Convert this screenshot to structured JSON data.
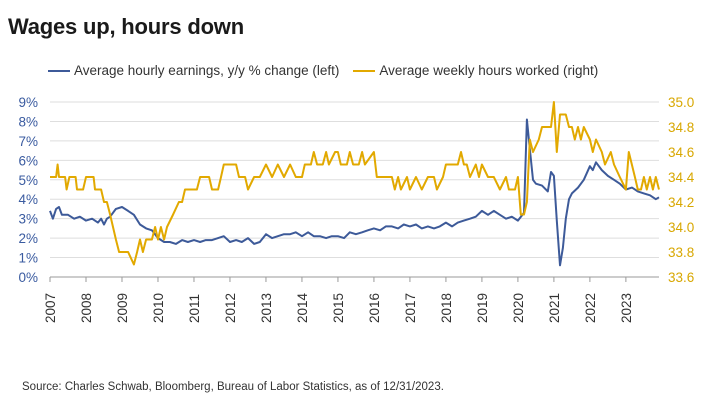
{
  "title": "Wages up, hours down",
  "source": "Source: Charles Schwab, Bloomberg, Bureau of Labor Statistics, as of 12/31/2023.",
  "colors": {
    "earnings": "#3d5a99",
    "hours": "#e2a900"
  },
  "chart_data": {
    "type": "line",
    "x_unit": "year",
    "x_range": [
      2007,
      2023.92
    ],
    "x_ticks": [
      "2007",
      "2008",
      "2009",
      "2010",
      "2011",
      "2012",
      "2013",
      "2014",
      "2015",
      "2016",
      "2017",
      "2018",
      "2019",
      "2020",
      "2021",
      "2022",
      "2023"
    ],
    "y_left": {
      "ticks": [
        "0%",
        "1%",
        "2%",
        "3%",
        "4%",
        "5%",
        "6%",
        "7%",
        "8%",
        "9%"
      ],
      "range": [
        0,
        9
      ]
    },
    "y_right": {
      "ticks": [
        "33.6",
        "33.8",
        "34.0",
        "34.2",
        "34.4",
        "34.6",
        "34.8",
        "35.0"
      ],
      "range": [
        33.6,
        35.0
      ]
    },
    "grid": "horizontal",
    "legend_position": "top",
    "series": [
      {
        "name": "Average hourly earnings, y/y % change (left)",
        "axis": "left",
        "points": [
          [
            2007.0,
            3.4
          ],
          [
            2007.08,
            3.0
          ],
          [
            2007.17,
            3.5
          ],
          [
            2007.25,
            3.6
          ],
          [
            2007.33,
            3.2
          ],
          [
            2007.5,
            3.2
          ],
          [
            2007.67,
            3.0
          ],
          [
            2007.83,
            3.1
          ],
          [
            2008.0,
            2.9
          ],
          [
            2008.17,
            3.0
          ],
          [
            2008.33,
            2.8
          ],
          [
            2008.42,
            3.0
          ],
          [
            2008.5,
            2.7
          ],
          [
            2008.58,
            3.0
          ],
          [
            2008.67,
            3.1
          ],
          [
            2008.83,
            3.5
          ],
          [
            2009.0,
            3.6
          ],
          [
            2009.17,
            3.4
          ],
          [
            2009.33,
            3.2
          ],
          [
            2009.5,
            2.7
          ],
          [
            2009.67,
            2.5
          ],
          [
            2009.83,
            2.4
          ],
          [
            2010.0,
            2.0
          ],
          [
            2010.17,
            1.8
          ],
          [
            2010.33,
            1.8
          ],
          [
            2010.5,
            1.7
          ],
          [
            2010.67,
            1.9
          ],
          [
            2010.83,
            1.8
          ],
          [
            2011.0,
            1.9
          ],
          [
            2011.17,
            1.8
          ],
          [
            2011.33,
            1.9
          ],
          [
            2011.5,
            1.9
          ],
          [
            2011.67,
            2.0
          ],
          [
            2011.83,
            2.1
          ],
          [
            2012.0,
            1.8
          ],
          [
            2012.17,
            1.9
          ],
          [
            2012.33,
            1.8
          ],
          [
            2012.5,
            2.0
          ],
          [
            2012.67,
            1.7
          ],
          [
            2012.83,
            1.8
          ],
          [
            2013.0,
            2.2
          ],
          [
            2013.17,
            2.0
          ],
          [
            2013.33,
            2.1
          ],
          [
            2013.5,
            2.2
          ],
          [
            2013.67,
            2.2
          ],
          [
            2013.83,
            2.3
          ],
          [
            2014.0,
            2.1
          ],
          [
            2014.17,
            2.3
          ],
          [
            2014.33,
            2.1
          ],
          [
            2014.5,
            2.1
          ],
          [
            2014.67,
            2.0
          ],
          [
            2014.83,
            2.1
          ],
          [
            2015.0,
            2.1
          ],
          [
            2015.17,
            2.0
          ],
          [
            2015.33,
            2.3
          ],
          [
            2015.5,
            2.2
          ],
          [
            2015.67,
            2.3
          ],
          [
            2015.83,
            2.4
          ],
          [
            2016.0,
            2.5
          ],
          [
            2016.17,
            2.4
          ],
          [
            2016.33,
            2.6
          ],
          [
            2016.5,
            2.6
          ],
          [
            2016.67,
            2.5
          ],
          [
            2016.83,
            2.7
          ],
          [
            2017.0,
            2.6
          ],
          [
            2017.17,
            2.7
          ],
          [
            2017.33,
            2.5
          ],
          [
            2017.5,
            2.6
          ],
          [
            2017.67,
            2.5
          ],
          [
            2017.83,
            2.6
          ],
          [
            2018.0,
            2.8
          ],
          [
            2018.17,
            2.6
          ],
          [
            2018.33,
            2.8
          ],
          [
            2018.5,
            2.9
          ],
          [
            2018.67,
            3.0
          ],
          [
            2018.83,
            3.1
          ],
          [
            2019.0,
            3.4
          ],
          [
            2019.17,
            3.2
          ],
          [
            2019.33,
            3.4
          ],
          [
            2019.5,
            3.2
          ],
          [
            2019.67,
            3.0
          ],
          [
            2019.83,
            3.1
          ],
          [
            2020.0,
            2.9
          ],
          [
            2020.17,
            3.3
          ],
          [
            2020.25,
            8.1
          ],
          [
            2020.33,
            6.6
          ],
          [
            2020.42,
            5.0
          ],
          [
            2020.5,
            4.8
          ],
          [
            2020.67,
            4.7
          ],
          [
            2020.83,
            4.4
          ],
          [
            2020.92,
            5.4
          ],
          [
            2021.0,
            5.2
          ],
          [
            2021.08,
            2.9
          ],
          [
            2021.17,
            0.6
          ],
          [
            2021.25,
            1.5
          ],
          [
            2021.33,
            3.0
          ],
          [
            2021.42,
            4.0
          ],
          [
            2021.5,
            4.3
          ],
          [
            2021.67,
            4.6
          ],
          [
            2021.83,
            5.0
          ],
          [
            2022.0,
            5.7
          ],
          [
            2022.08,
            5.5
          ],
          [
            2022.17,
            5.9
          ],
          [
            2022.33,
            5.5
          ],
          [
            2022.5,
            5.2
          ],
          [
            2022.67,
            5.0
          ],
          [
            2022.83,
            4.8
          ],
          [
            2023.0,
            4.5
          ],
          [
            2023.17,
            4.6
          ],
          [
            2023.33,
            4.4
          ],
          [
            2023.5,
            4.3
          ],
          [
            2023.67,
            4.2
          ],
          [
            2023.83,
            4.0
          ],
          [
            2023.92,
            4.1
          ]
        ]
      },
      {
        "name": "Average weekly hours worked (right)",
        "axis": "right",
        "points": [
          [
            2007.0,
            34.4
          ],
          [
            2007.17,
            34.4
          ],
          [
            2007.21,
            34.5
          ],
          [
            2007.25,
            34.4
          ],
          [
            2007.42,
            34.4
          ],
          [
            2007.46,
            34.3
          ],
          [
            2007.54,
            34.4
          ],
          [
            2007.71,
            34.4
          ],
          [
            2007.75,
            34.3
          ],
          [
            2007.92,
            34.3
          ],
          [
            2008.0,
            34.4
          ],
          [
            2008.21,
            34.4
          ],
          [
            2008.25,
            34.3
          ],
          [
            2008.42,
            34.3
          ],
          [
            2008.5,
            34.2
          ],
          [
            2008.58,
            34.2
          ],
          [
            2008.67,
            34.1
          ],
          [
            2008.75,
            34.0
          ],
          [
            2008.83,
            33.9
          ],
          [
            2008.92,
            33.8
          ],
          [
            2009.0,
            33.8
          ],
          [
            2009.08,
            33.8
          ],
          [
            2009.17,
            33.8
          ],
          [
            2009.33,
            33.7
          ],
          [
            2009.42,
            33.8
          ],
          [
            2009.5,
            33.9
          ],
          [
            2009.58,
            33.8
          ],
          [
            2009.67,
            33.9
          ],
          [
            2009.83,
            33.9
          ],
          [
            2009.92,
            34.0
          ],
          [
            2010.0,
            33.9
          ],
          [
            2010.08,
            34.0
          ],
          [
            2010.17,
            33.9
          ],
          [
            2010.25,
            34.0
          ],
          [
            2010.42,
            34.1
          ],
          [
            2010.58,
            34.2
          ],
          [
            2010.67,
            34.2
          ],
          [
            2010.75,
            34.3
          ],
          [
            2011.0,
            34.3
          ],
          [
            2011.08,
            34.3
          ],
          [
            2011.17,
            34.4
          ],
          [
            2011.42,
            34.4
          ],
          [
            2011.5,
            34.3
          ],
          [
            2011.67,
            34.3
          ],
          [
            2011.75,
            34.4
          ],
          [
            2011.83,
            34.5
          ],
          [
            2012.0,
            34.5
          ],
          [
            2012.17,
            34.5
          ],
          [
            2012.25,
            34.4
          ],
          [
            2012.42,
            34.4
          ],
          [
            2012.5,
            34.3
          ],
          [
            2012.67,
            34.4
          ],
          [
            2012.83,
            34.4
          ],
          [
            2013.0,
            34.5
          ],
          [
            2013.17,
            34.4
          ],
          [
            2013.33,
            34.5
          ],
          [
            2013.5,
            34.4
          ],
          [
            2013.67,
            34.5
          ],
          [
            2013.83,
            34.4
          ],
          [
            2014.0,
            34.4
          ],
          [
            2014.08,
            34.5
          ],
          [
            2014.25,
            34.5
          ],
          [
            2014.33,
            34.6
          ],
          [
            2014.42,
            34.5
          ],
          [
            2014.58,
            34.5
          ],
          [
            2014.67,
            34.6
          ],
          [
            2014.75,
            34.5
          ],
          [
            2014.92,
            34.6
          ],
          [
            2015.0,
            34.6
          ],
          [
            2015.08,
            34.5
          ],
          [
            2015.25,
            34.5
          ],
          [
            2015.33,
            34.6
          ],
          [
            2015.42,
            34.5
          ],
          [
            2015.58,
            34.5
          ],
          [
            2015.67,
            34.6
          ],
          [
            2015.75,
            34.5
          ],
          [
            2016.0,
            34.6
          ],
          [
            2016.08,
            34.4
          ],
          [
            2016.33,
            34.4
          ],
          [
            2016.42,
            34.4
          ],
          [
            2016.5,
            34.4
          ],
          [
            2016.58,
            34.3
          ],
          [
            2016.67,
            34.4
          ],
          [
            2016.75,
            34.3
          ],
          [
            2016.92,
            34.4
          ],
          [
            2017.0,
            34.3
          ],
          [
            2017.17,
            34.4
          ],
          [
            2017.33,
            34.3
          ],
          [
            2017.5,
            34.4
          ],
          [
            2017.67,
            34.4
          ],
          [
            2017.75,
            34.3
          ],
          [
            2017.92,
            34.4
          ],
          [
            2018.0,
            34.5
          ],
          [
            2018.08,
            34.5
          ],
          [
            2018.17,
            34.5
          ],
          [
            2018.33,
            34.5
          ],
          [
            2018.42,
            34.6
          ],
          [
            2018.5,
            34.5
          ],
          [
            2018.58,
            34.5
          ],
          [
            2018.67,
            34.4
          ],
          [
            2018.83,
            34.5
          ],
          [
            2018.92,
            34.4
          ],
          [
            2019.0,
            34.5
          ],
          [
            2019.17,
            34.4
          ],
          [
            2019.33,
            34.4
          ],
          [
            2019.5,
            34.3
          ],
          [
            2019.67,
            34.4
          ],
          [
            2019.75,
            34.3
          ],
          [
            2019.83,
            34.3
          ],
          [
            2019.92,
            34.3
          ],
          [
            2020.0,
            34.4
          ],
          [
            2020.08,
            34.1
          ],
          [
            2020.17,
            34.1
          ],
          [
            2020.25,
            34.2
          ],
          [
            2020.33,
            34.7
          ],
          [
            2020.42,
            34.6
          ],
          [
            2020.58,
            34.7
          ],
          [
            2020.67,
            34.8
          ],
          [
            2020.83,
            34.8
          ],
          [
            2020.92,
            34.8
          ],
          [
            2021.0,
            35.0
          ],
          [
            2021.08,
            34.6
          ],
          [
            2021.17,
            34.9
          ],
          [
            2021.33,
            34.9
          ],
          [
            2021.42,
            34.8
          ],
          [
            2021.5,
            34.8
          ],
          [
            2021.58,
            34.7
          ],
          [
            2021.67,
            34.8
          ],
          [
            2021.75,
            34.7
          ],
          [
            2021.83,
            34.8
          ],
          [
            2022.0,
            34.7
          ],
          [
            2022.08,
            34.6
          ],
          [
            2022.17,
            34.7
          ],
          [
            2022.33,
            34.6
          ],
          [
            2022.42,
            34.5
          ],
          [
            2022.58,
            34.6
          ],
          [
            2022.67,
            34.5
          ],
          [
            2022.83,
            34.4
          ],
          [
            2023.0,
            34.3
          ],
          [
            2023.08,
            34.6
          ],
          [
            2023.25,
            34.4
          ],
          [
            2023.33,
            34.3
          ],
          [
            2023.42,
            34.3
          ],
          [
            2023.5,
            34.4
          ],
          [
            2023.58,
            34.3
          ],
          [
            2023.67,
            34.4
          ],
          [
            2023.75,
            34.3
          ],
          [
            2023.83,
            34.4
          ],
          [
            2023.92,
            34.3
          ]
        ]
      }
    ]
  }
}
